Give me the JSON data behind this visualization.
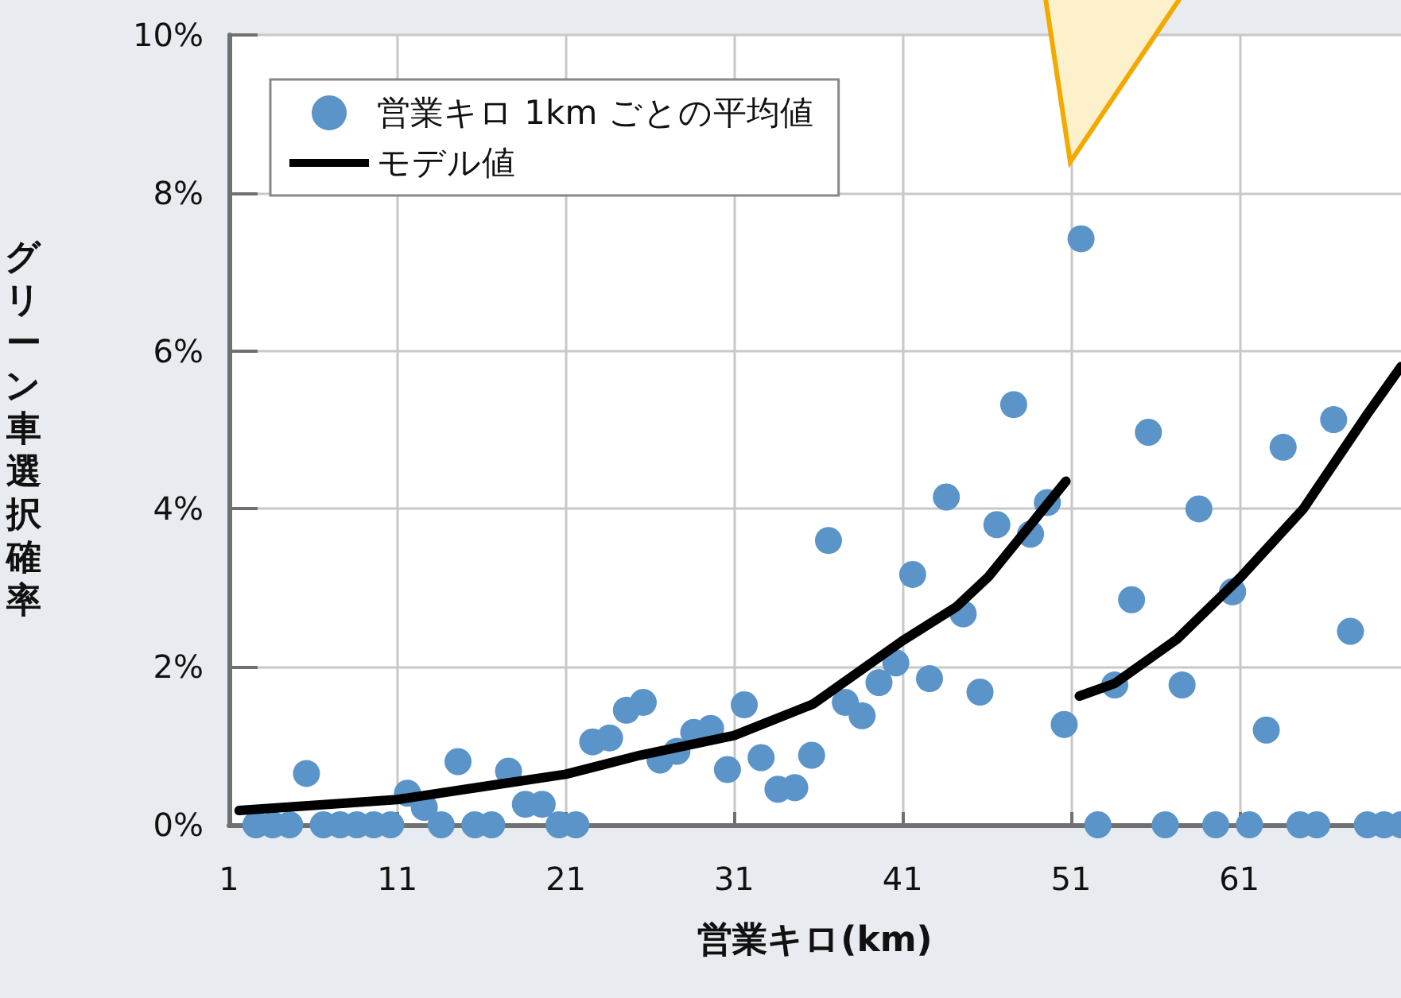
{
  "chart_data": {
    "type": "scatter",
    "xlabel": "営業キロ(km)",
    "ylabel": "グリーン車選択確率",
    "xlim": [
      1,
      70.6
    ],
    "xticks": [
      1,
      11,
      21,
      31,
      41,
      51,
      61
    ],
    "ylim": [
      0,
      10
    ],
    "yticks": [
      {
        "value": 0,
        "label": "0%"
      },
      {
        "value": 2,
        "label": "2%"
      },
      {
        "value": 4,
        "label": "4%"
      },
      {
        "value": 6,
        "label": "6%"
      },
      {
        "value": 8,
        "label": "8%"
      },
      {
        "value": 10,
        "label": "10%"
      }
    ],
    "grid": true,
    "legend": "top left",
    "series": [
      {
        "name": "営業キロ 1km ごとの平均値",
        "marker": "circle",
        "color": "#5b94c8",
        "x": [
          2.6,
          3.6,
          4.6,
          5.6,
          6.6,
          7.6,
          8.6,
          9.6,
          10.6,
          11.6,
          12.6,
          13.6,
          14.6,
          15.6,
          16.6,
          17.6,
          18.6,
          19.6,
          20.6,
          21.6,
          22.6,
          23.6,
          24.6,
          25.6,
          26.6,
          27.6,
          28.6,
          29.6,
          30.6,
          31.6,
          32.6,
          33.6,
          34.6,
          35.6,
          36.6,
          37.6,
          38.6,
          39.6,
          40.6,
          41.6,
          42.6,
          43.6,
          44.6,
          45.6,
          46.6,
          47.6,
          48.6,
          49.6,
          50.6,
          51.6,
          52.6,
          53.6,
          54.6,
          55.6,
          56.6,
          57.6,
          58.6,
          59.6,
          60.6,
          61.6,
          62.6,
          63.6,
          64.6,
          65.6,
          66.6,
          67.6,
          68.6,
          69.6,
          70.6
        ],
        "values": [
          0,
          0,
          0,
          0.65,
          0,
          0,
          0,
          0,
          0,
          0.4,
          0.22,
          0,
          0.8,
          0,
          0,
          0.68,
          0.26,
          0.26,
          0,
          0,
          1.05,
          1.1,
          1.45,
          1.55,
          0.82,
          0.93,
          1.17,
          1.22,
          0.7,
          1.52,
          0.85,
          0.45,
          0.47,
          0.88,
          3.6,
          1.55,
          1.38,
          1.8,
          2.05,
          3.17,
          1.85,
          4.15,
          2.67,
          1.68,
          3.8,
          5.32,
          3.68,
          4.08,
          1.27,
          7.42,
          0,
          1.77,
          2.85,
          4.97,
          0,
          1.77,
          4.0,
          0,
          2.95,
          0,
          1.2,
          4.78,
          0,
          0,
          5.13,
          2.45,
          0,
          0,
          0
        ]
      },
      {
        "name": "モデル値",
        "type": "line",
        "marker": "none",
        "line_style": "solid",
        "color": "#000000",
        "x": [
          1.6,
          11,
          16,
          21,
          25.4,
          31,
          35.7,
          41,
          44.2,
          46.1,
          50.7,
          51.1,
          51.5,
          53.6,
          57.3,
          61.1,
          64.8,
          68.6,
          70.6
        ],
        "values": [
          0.18,
          0.32,
          0.48,
          0.64,
          0.88,
          1.13,
          1.53,
          2.33,
          2.76,
          3.14,
          4.35,
          null,
          1.63,
          1.79,
          2.35,
          3.14,
          4.0,
          5.2,
          5.8
        ]
      }
    ]
  }
}
